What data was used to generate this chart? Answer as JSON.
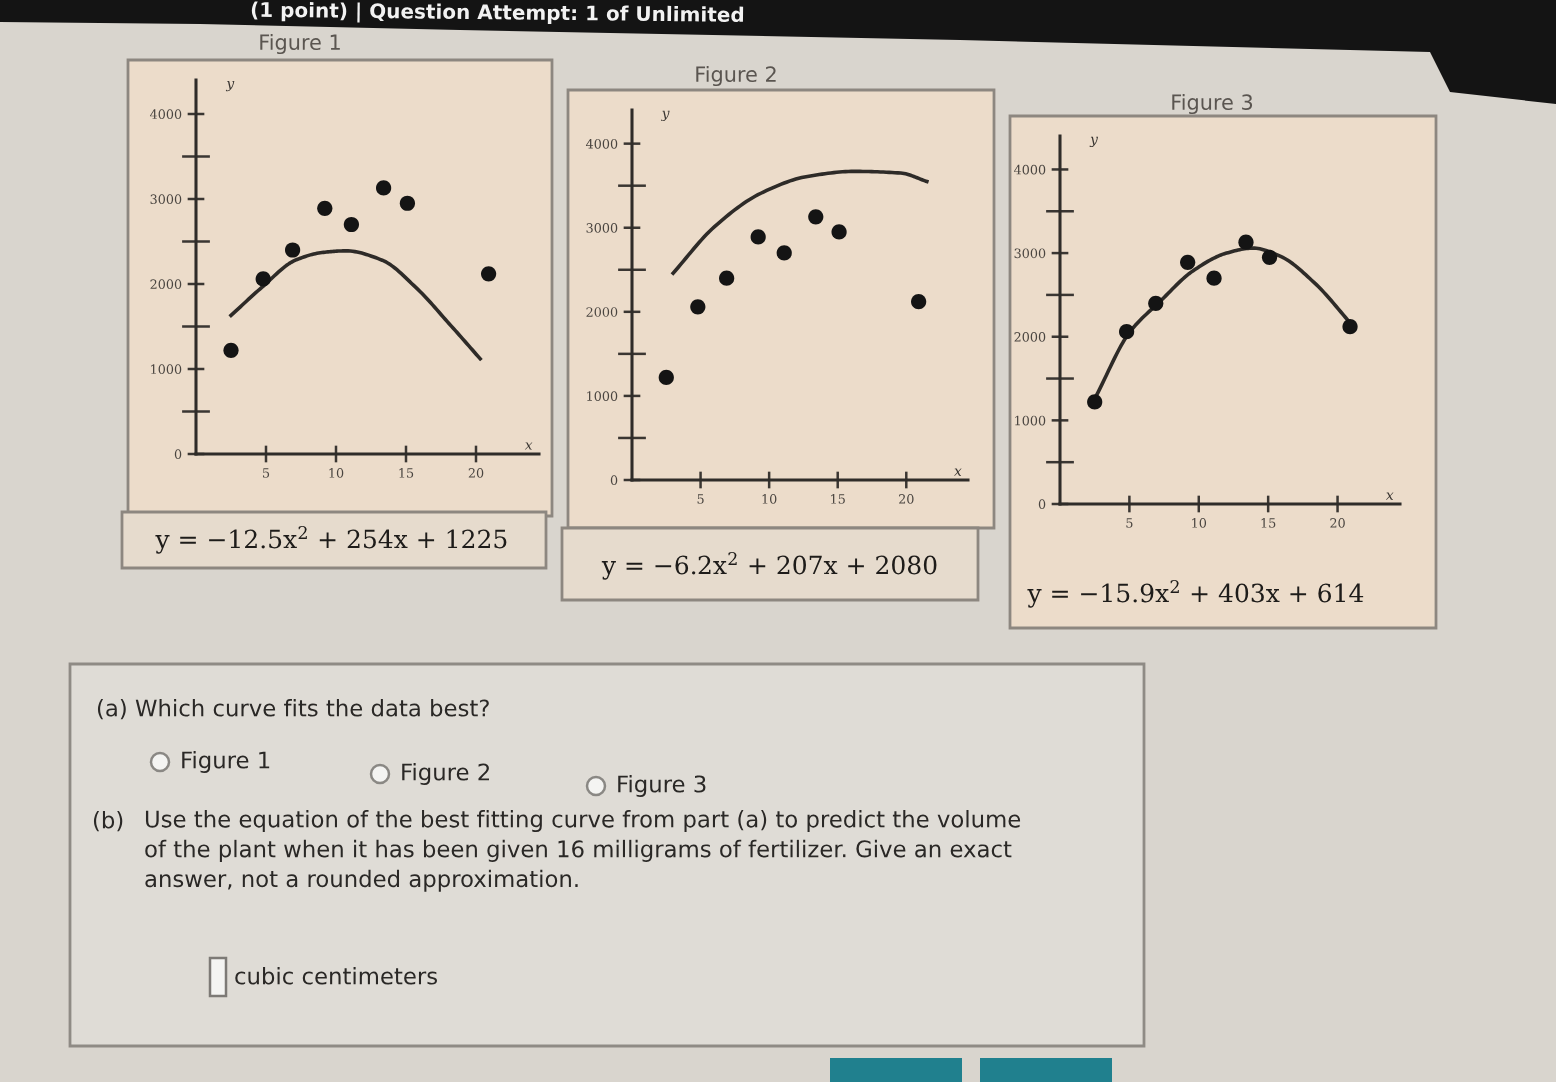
{
  "chart_data": [
    {
      "type": "other",
      "annotations": [
        "(1 point) | Question Attempt: 1 of Unlimited"
      ]
    },
    {
      "type": "scatter",
      "title": "Figure 1",
      "xlabel": "x",
      "ylabel": "y",
      "xlim": [
        0,
        24.5
      ],
      "ylim": [
        0,
        4400
      ],
      "xticks": [
        5,
        10,
        15,
        20
      ],
      "yticks": [
        0,
        {
          "value": 500,
          "label": null
        },
        1000,
        {
          "value": 1500,
          "label": null
        },
        2000,
        {
          "value": 2500,
          "label": null
        },
        3000,
        {
          "value": 3500,
          "label": null
        },
        4000
      ],
      "series": [
        {
          "color": "#141414",
          "marker": "circle",
          "x": [
            2.5,
            4.8,
            6.9,
            9.2,
            11.1,
            13.4,
            15.1,
            20.9
          ],
          "values": [
            1220,
            2060,
            2400,
            2890,
            2700,
            3130,
            2950,
            2120
          ]
        },
        {
          "type": "line",
          "color": "#2e2b28",
          "marker": "none",
          "x": [
            2.5,
            4.7,
            7.1,
            9.0,
            10.7,
            13.3,
            15.7,
            18.1,
            20.3
          ],
          "values": [
            1630,
            1960,
            2280,
            2370,
            2390,
            2280,
            1960,
            1530,
            1120
          ]
        }
      ],
      "annotations": [
        "y = −12.5x$^{2}$ + 254x + 1225"
      ]
    },
    {
      "type": "scatter",
      "title": "Figure 2",
      "xlabel": "x",
      "ylabel": "y",
      "xlim": [
        0,
        24.5
      ],
      "ylim": [
        0,
        4400
      ],
      "xticks": [
        5,
        10,
        15,
        20
      ],
      "yticks": [
        0,
        {
          "value": 500,
          "label": null
        },
        1000,
        {
          "value": 1500,
          "label": null
        },
        2000,
        {
          "value": 2500,
          "label": null
        },
        3000,
        {
          "value": 3500,
          "label": null
        },
        4000
      ],
      "series": [
        {
          "color": "#141414",
          "marker": "circle",
          "x": [
            2.5,
            4.8,
            6.9,
            9.2,
            11.1,
            13.4,
            15.1,
            20.9
          ],
          "values": [
            1220,
            2060,
            2400,
            2890,
            2700,
            3130,
            2950,
            2120
          ]
        },
        {
          "type": "line",
          "color": "#2e2b28",
          "marker": "none",
          "x": [
            3.0,
            6.0,
            9.4,
            12.8,
            16.2,
            19.6,
            21.5
          ],
          "values": [
            2460,
            3010,
            3410,
            3610,
            3670,
            3650,
            3550
          ]
        }
      ],
      "annotations": [
        "y = −6.2x$^{2}$ + 207x + 2080"
      ]
    },
    {
      "type": "scatter",
      "title": "Figure 3",
      "xlabel": "x",
      "ylabel": "y",
      "xlim": [
        0,
        24.5
      ],
      "ylim": [
        0,
        4400
      ],
      "xticks": [
        5,
        10,
        15,
        20
      ],
      "yticks": [
        0,
        {
          "value": 500,
          "label": null
        },
        1000,
        {
          "value": 1500,
          "label": null
        },
        2000,
        {
          "value": 2500,
          "label": null
        },
        3000,
        {
          "value": 3500,
          "label": null
        },
        4000
      ],
      "series": [
        {
          "color": "#141414",
          "marker": "circle",
          "x": [
            2.5,
            4.8,
            6.9,
            9.2,
            11.1,
            13.4,
            15.1,
            20.9
          ],
          "values": [
            1220,
            2060,
            2400,
            2890,
            2700,
            3130,
            2950,
            2120
          ]
        },
        {
          "type": "line",
          "color": "#2e2b28",
          "marker": "none",
          "x": [
            2.6,
            5.0,
            7.2,
            9.6,
            12.0,
            13.9,
            15.9,
            18.3,
            21.1
          ],
          "values": [
            1290,
            2050,
            2420,
            2790,
            3000,
            3060,
            2960,
            2650,
            2130
          ]
        }
      ],
      "annotations": [
        "y = −15.9x$^{2}$ + 403x + 614"
      ]
    },
    {
      "type": "other",
      "annotations": [
        "(a) Which curve fits the data best?",
        "Figure 1",
        "Figure 2",
        "Figure 3",
        "(b)",
        "Use the equation of the best fitting curve from part (a) to predict the volume\nof the plant when it has been given 16 milligrams of fertilizer. Give an exact\nanswer, not a rounded approximation.",
        "cubic centimeters"
      ]
    }
  ]
}
